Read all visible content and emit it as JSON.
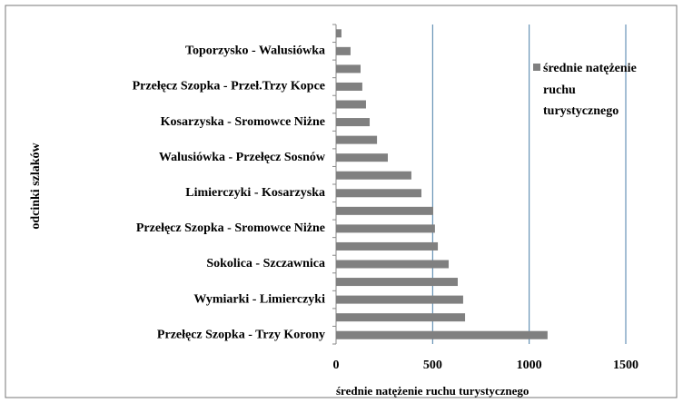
{
  "chart_data": {
    "type": "barh",
    "xlabel": "średnie natężenie ruchu turystycznego",
    "ylabel": "odcinki szlaków",
    "categories": [
      null,
      "Toporzysko - Walusiówka",
      null,
      "Przełęcz Szopka - Przeł.Trzy Kopce",
      null,
      "Kosarzyska - Sromowce Niżne",
      null,
      "Walusiówka - Przełęcz Sosnów",
      null,
      "Limierczyki - Kosarzyska",
      null,
      "Przełęcz Szopka - Sromowce Niżne",
      null,
      "Sokolica - Szczawnica",
      null,
      "Wymiarki - Limierczyki",
      null,
      "Przełęcz Szopka - Trzy Korony"
    ],
    "series": [
      {
        "name": "średnie natężenie ruchu turystycznego",
        "color": "#808080",
        "values": [
          28,
          75,
          127,
          136,
          155,
          174,
          212,
          268,
          390,
          442,
          503,
          512,
          527,
          583,
          630,
          658,
          668,
          1095
        ]
      }
    ],
    "xlim": [
      0,
      1500
    ],
    "xticks": [
      0,
      500,
      1000,
      1500
    ],
    "grid": true,
    "grid_color": "#4a7ea8",
    "legend": "upper right"
  }
}
